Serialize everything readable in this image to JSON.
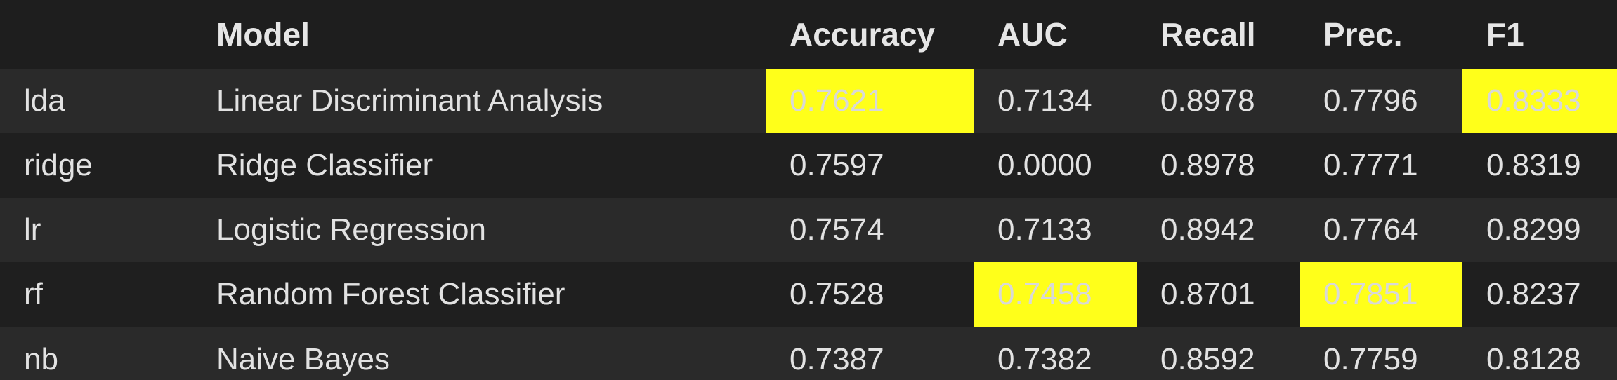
{
  "table": {
    "headers": {
      "index": "",
      "model": "Model",
      "accuracy": "Accuracy",
      "auc": "AUC",
      "recall": "Recall",
      "prec": "Prec.",
      "f1": "F1"
    },
    "rows": [
      {
        "index": "lda",
        "model": "Linear Discriminant Analysis",
        "accuracy": "0.7621",
        "auc": "0.7134",
        "recall": "0.8978",
        "prec": "0.7796",
        "f1": "0.8333"
      },
      {
        "index": "ridge",
        "model": "Ridge Classifier",
        "accuracy": "0.7597",
        "auc": "0.0000",
        "recall": "0.8978",
        "prec": "0.7771",
        "f1": "0.8319"
      },
      {
        "index": "lr",
        "model": "Logistic Regression",
        "accuracy": "0.7574",
        "auc": "0.7133",
        "recall": "0.8942",
        "prec": "0.7764",
        "f1": "0.8299"
      },
      {
        "index": "rf",
        "model": "Random Forest Classifier",
        "accuracy": "0.7528",
        "auc": "0.7458",
        "recall": "0.8701",
        "prec": "0.7851",
        "f1": "0.8237"
      },
      {
        "index": "nb",
        "model": "Naive Bayes",
        "accuracy": "0.7387",
        "auc": "0.7382",
        "recall": "0.8592",
        "prec": "0.7759",
        "f1": "0.8128"
      }
    ],
    "highlight_color": "#ffff1a",
    "background_color": "#1e1e1e",
    "alt_row_color": "#2a2a2a"
  }
}
